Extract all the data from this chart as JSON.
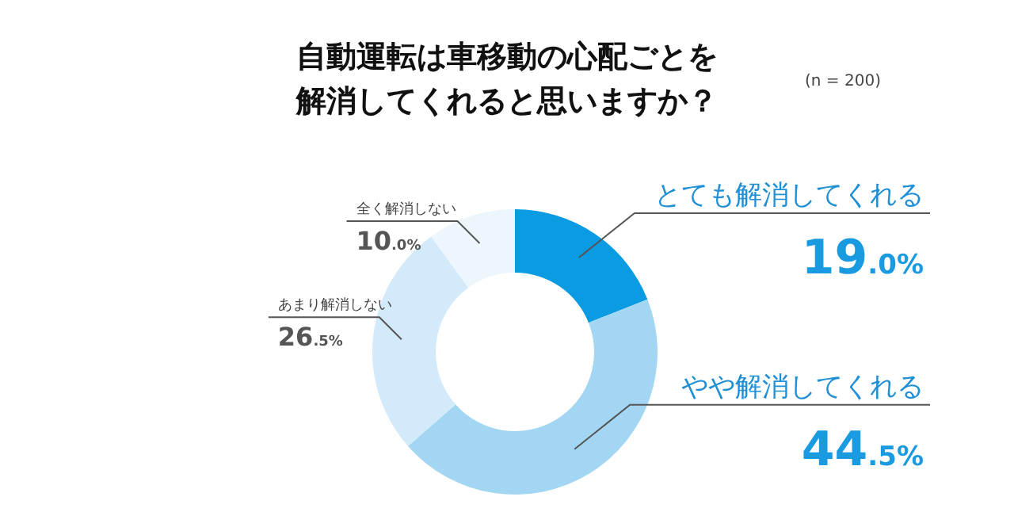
{
  "chart_data": {
    "type": "donut",
    "title": "自動運転は車移動の心配ごとを解消してくれると思いますか？",
    "categories": [
      "とても解消してくれる",
      "やや解消してくれる",
      "あまり解消しない",
      "全く解消しない"
    ],
    "values": [
      19.0,
      44.5,
      26.5,
      10.0
    ],
    "colors": [
      "#0a9be3",
      "#a2d6f3",
      "#d3eafa",
      "#edf6fd"
    ],
    "value_labels": [
      "19.0%",
      "44.5%",
      "26.5%",
      "10.0%"
    ],
    "annotations": [
      "(n = 200)"
    ]
  }
}
